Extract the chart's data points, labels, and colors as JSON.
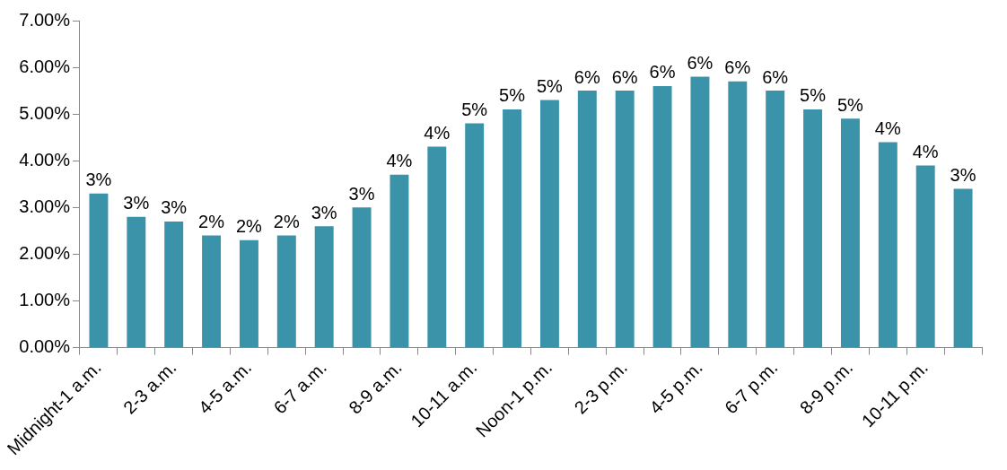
{
  "chart_data": {
    "type": "bar",
    "categories": [
      "Midnight-1 a.m.",
      null,
      "2-3 a.m.",
      null,
      "4-5 a.m.",
      null,
      "6-7 a.m.",
      null,
      "8-9 a.m.",
      null,
      "10-11 a.m.",
      null,
      "Noon-1 p.m.",
      null,
      "2-3 p.m.",
      null,
      "4-5 p.m.",
      null,
      "6-7 p.m.",
      null,
      "8-9 p.m.",
      null,
      "10-11 p.m.",
      null
    ],
    "values": [
      3.3,
      2.8,
      2.7,
      2.4,
      2.3,
      2.4,
      2.6,
      3.0,
      3.7,
      4.3,
      4.8,
      5.1,
      5.3,
      5.5,
      5.5,
      5.6,
      5.8,
      5.7,
      5.5,
      5.1,
      4.9,
      4.4,
      3.9,
      3.4
    ],
    "value_labels": [
      "3%",
      "3%",
      "3%",
      "2%",
      "2%",
      "2%",
      "3%",
      "3%",
      "4%",
      "4%",
      "5%",
      "5%",
      "5%",
      "6%",
      "6%",
      "6%",
      "6%",
      "6%",
      "6%",
      "5%",
      "5%",
      "4%",
      "4%",
      "3%"
    ],
    "color": "#3a93a8",
    "ylim": [
      0,
      7
    ],
    "yticks": [
      {
        "value": 0,
        "label": "0.00%"
      },
      {
        "value": 1,
        "label": "1.00%"
      },
      {
        "value": 2,
        "label": "2.00%"
      },
      {
        "value": 3,
        "label": "3.00%"
      },
      {
        "value": 4,
        "label": "4.00%"
      },
      {
        "value": 5,
        "label": "5.00%"
      },
      {
        "value": 6,
        "label": "6.00%"
      },
      {
        "value": 7,
        "label": "7.00%"
      }
    ],
    "grid": false,
    "legend": false
  }
}
